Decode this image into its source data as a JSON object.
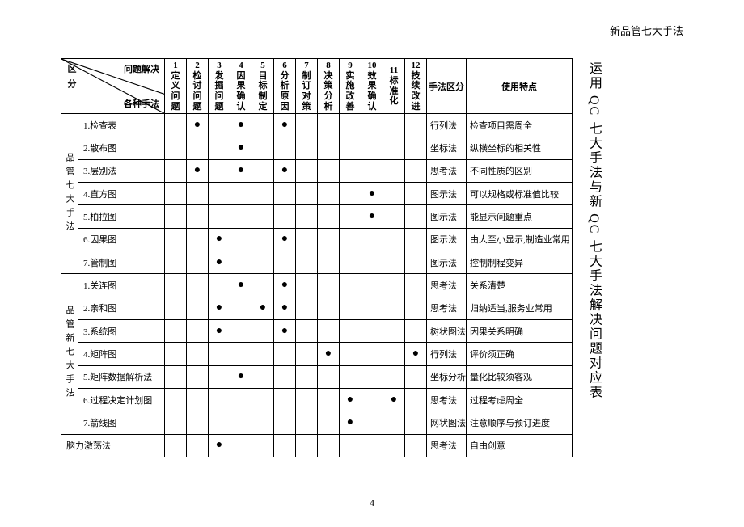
{
  "header_text": "新品管七大手法",
  "vertical_title": "运用 QC 七大手法与新 QC 七大手法解决问题对应表",
  "page_number": "4",
  "corner_labels": {
    "side": "区分",
    "top": "问题解决",
    "bottom": "各种手法"
  },
  "steps": [
    {
      "num": "1",
      "label": "定义问题"
    },
    {
      "num": "2",
      "label": "检讨问题"
    },
    {
      "num": "3",
      "label": "发掘问题"
    },
    {
      "num": "4",
      "label": "因果确认"
    },
    {
      "num": "5",
      "label": "目标制定"
    },
    {
      "num": "6",
      "label": "分析原因"
    },
    {
      "num": "7",
      "label": "制订对策"
    },
    {
      "num": "8",
      "label": "决策分析"
    },
    {
      "num": "9",
      "label": "实施改善"
    },
    {
      "num": "10",
      "label": "效果确认"
    },
    {
      "num": "11",
      "label": "标准化"
    },
    {
      "num": "12",
      "label": "技续改进"
    }
  ],
  "method_col_header": "手法区分",
  "feature_col_header": "使用特点",
  "groups": [
    {
      "name": "品管七大手法",
      "rows": [
        {
          "label": "1.检查表",
          "dots": [
            2,
            4,
            6
          ],
          "method": "行列法",
          "feature": "检查项目需周全"
        },
        {
          "label": "2.散布图",
          "dots": [
            4
          ],
          "method": "坐标法",
          "feature": "纵横坐标的相关性"
        },
        {
          "label": "3.层别法",
          "dots": [
            2,
            4,
            6
          ],
          "method": "思考法",
          "feature": "不同性质的区别"
        },
        {
          "label": "4.直方图",
          "dots": [
            10
          ],
          "method": "图示法",
          "feature": "可以规格或标准值比较"
        },
        {
          "label": "5.柏拉图",
          "dots": [
            10
          ],
          "method": "图示法",
          "feature": "能显示问题重点"
        },
        {
          "label": "6.因果图",
          "dots": [
            3,
            6
          ],
          "method": "图示法",
          "feature": "由大至小显示,制造业常用"
        },
        {
          "label": "7.管制图",
          "dots": [
            3
          ],
          "method": "图示法",
          "feature": "控制制程变异"
        }
      ]
    },
    {
      "name": "品管新七大手法",
      "rows": [
        {
          "label": "1.关连图",
          "dots": [
            4,
            6
          ],
          "method": "思考法",
          "feature": "关系清楚"
        },
        {
          "label": "2.亲和图",
          "dots": [
            3,
            5,
            6
          ],
          "method": "思考法",
          "feature": "归纳适当,服务业常用"
        },
        {
          "label": "3.系统图",
          "dots": [
            3,
            6
          ],
          "method": "树状图法",
          "feature": "因果关系明确"
        },
        {
          "label": "4.矩阵图",
          "dots": [
            8,
            12
          ],
          "method": "行列法",
          "feature": "评价须正确"
        },
        {
          "label": "5.矩阵数据解析法",
          "dots": [
            4
          ],
          "method": "坐标分析",
          "feature": "量化比较须客观"
        },
        {
          "label": "6.过程决定计划图",
          "dots": [
            9,
            11
          ],
          "method": "思考法",
          "feature": "过程考虑周全"
        },
        {
          "label": "7.箭线图",
          "dots": [
            9
          ],
          "method": "网状图法",
          "feature": "注意顺序与预订进度"
        }
      ]
    }
  ],
  "extra_row": {
    "label": "脑力激荡法",
    "dots": [
      3
    ],
    "method": "思考法",
    "feature": "自由创意"
  }
}
